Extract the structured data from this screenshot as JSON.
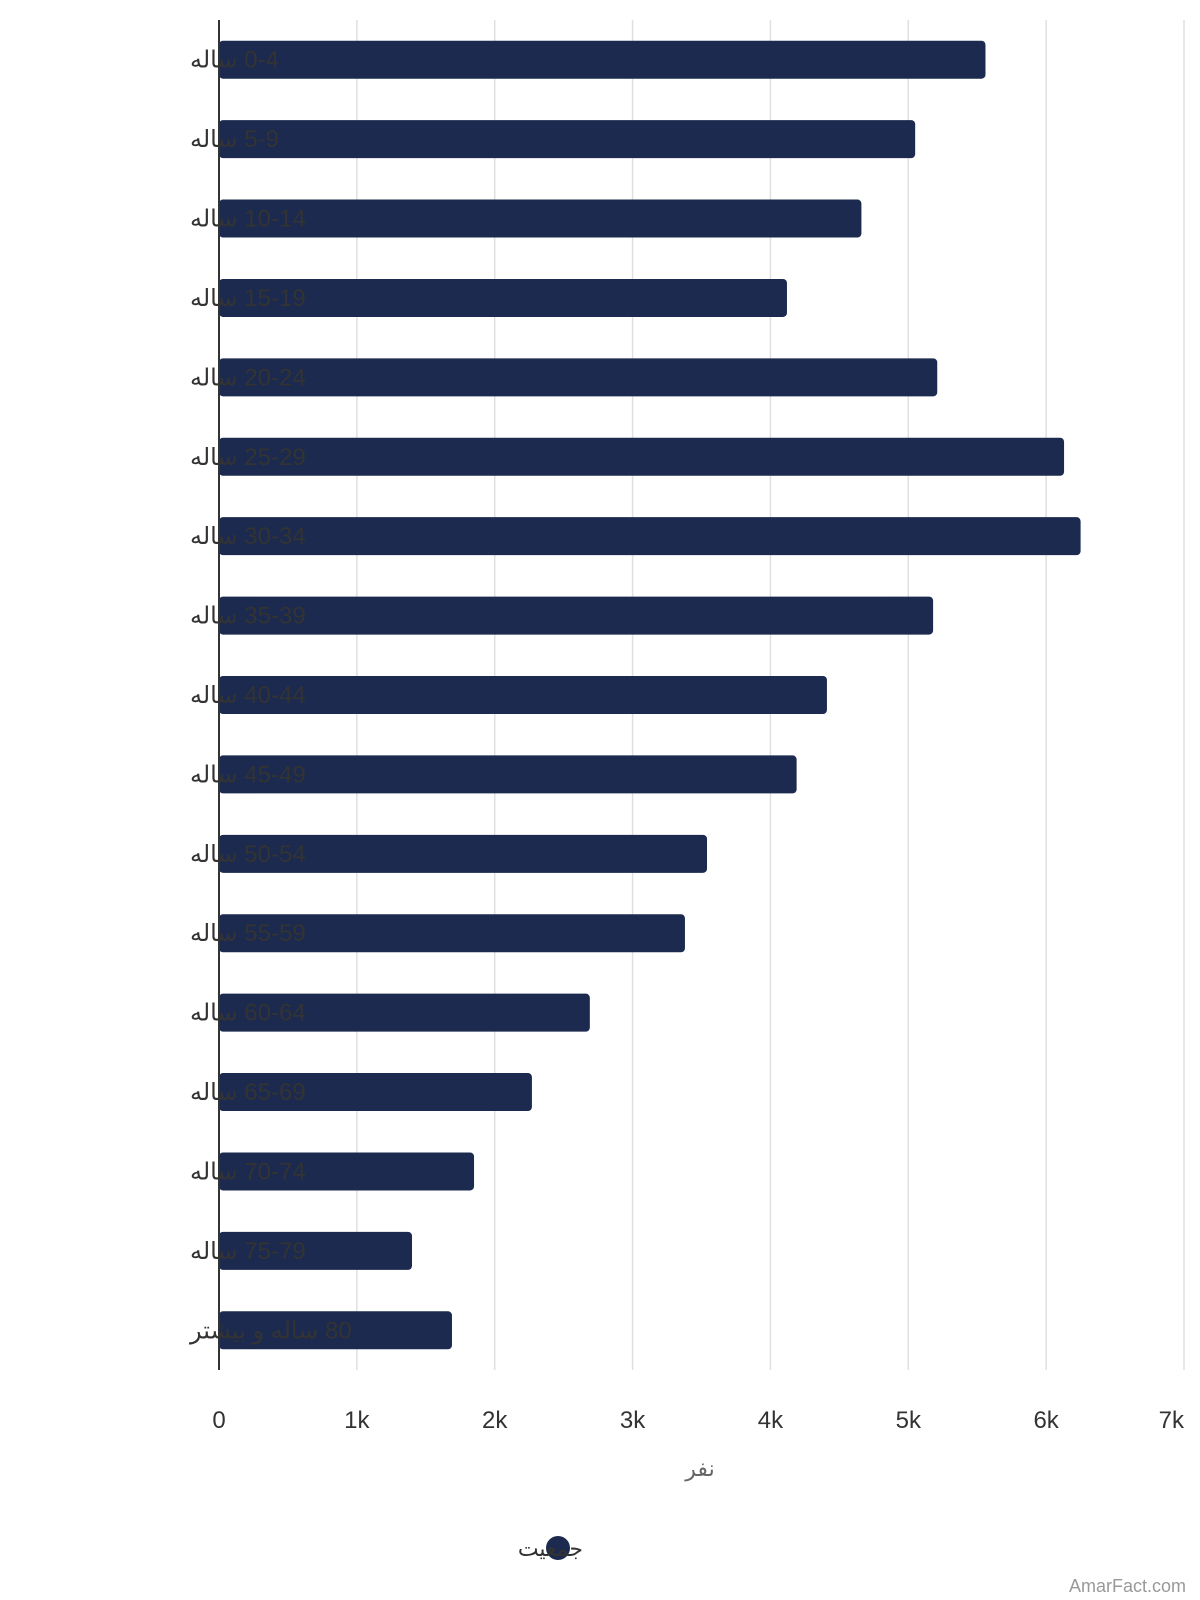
{
  "chart_data": {
    "type": "bar",
    "orientation": "horizontal",
    "categories": [
      "0-4 ساله",
      "5-9 ساله",
      "10-14 ساله",
      "15-19 ساله",
      "20-24 ساله",
      "25-29 ساله",
      "30-34 ساله",
      "35-39 ساله",
      "40-44 ساله",
      "45-49 ساله",
      "50-54 ساله",
      "55-59 ساله",
      "60-64 ساله",
      "65-69 ساله",
      "70-74 ساله",
      "75-79 ساله",
      "80 ساله و بیشتر"
    ],
    "series": [
      {
        "name": "جمعیت",
        "color": "#1b2a4e",
        "values": [
          5560,
          5050,
          4660,
          4120,
          5210,
          6130,
          6250,
          5180,
          4410,
          4190,
          3540,
          3380,
          2690,
          2270,
          1850,
          1400,
          1690
        ]
      }
    ],
    "xlim": [
      0,
      7000
    ],
    "xticks": [
      0,
      1000,
      2000,
      3000,
      4000,
      5000,
      6000,
      7000
    ],
    "xtick_labels": [
      "0",
      "1k",
      "2k",
      "3k",
      "4k",
      "5k",
      "6k",
      "7k"
    ],
    "xlabel": "نفر",
    "grid": true,
    "legend_position": "bottom-center"
  },
  "credit": "AmarFact.com",
  "colors": {
    "bar": "#1b2a4e",
    "grid": "#e0e0e0",
    "axis": "#333333"
  }
}
